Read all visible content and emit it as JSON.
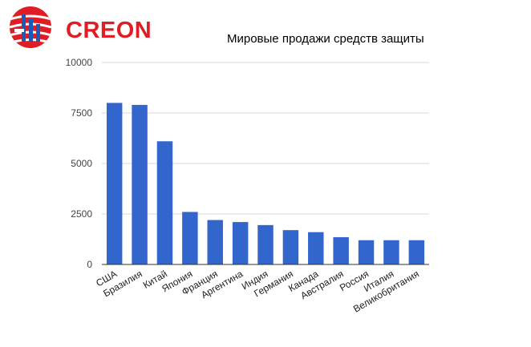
{
  "logo": {
    "text": "CREON",
    "color": "#e01d24",
    "icon": "creon-globe-logo-icon"
  },
  "chart_data": {
    "type": "bar",
    "title": "Мировые продажи средств защиты",
    "xlabel": "",
    "ylabel": "",
    "ylim": [
      0,
      10000
    ],
    "yticks": [
      "0",
      "2500",
      "5000",
      "7500",
      "10000"
    ],
    "grid": true,
    "legend": "none",
    "bar_color": "#3366cc",
    "categories": [
      "США",
      "Бразилия",
      "Китай",
      "Япония",
      "Франция",
      "Аргентина",
      "Индия",
      "Германия",
      "Канада",
      "Австралия",
      "Россия",
      "Италия",
      "Великобритания"
    ],
    "values": [
      8000,
      7900,
      6100,
      2600,
      2200,
      2100,
      1950,
      1700,
      1600,
      1350,
      1200,
      1200,
      1200
    ]
  }
}
